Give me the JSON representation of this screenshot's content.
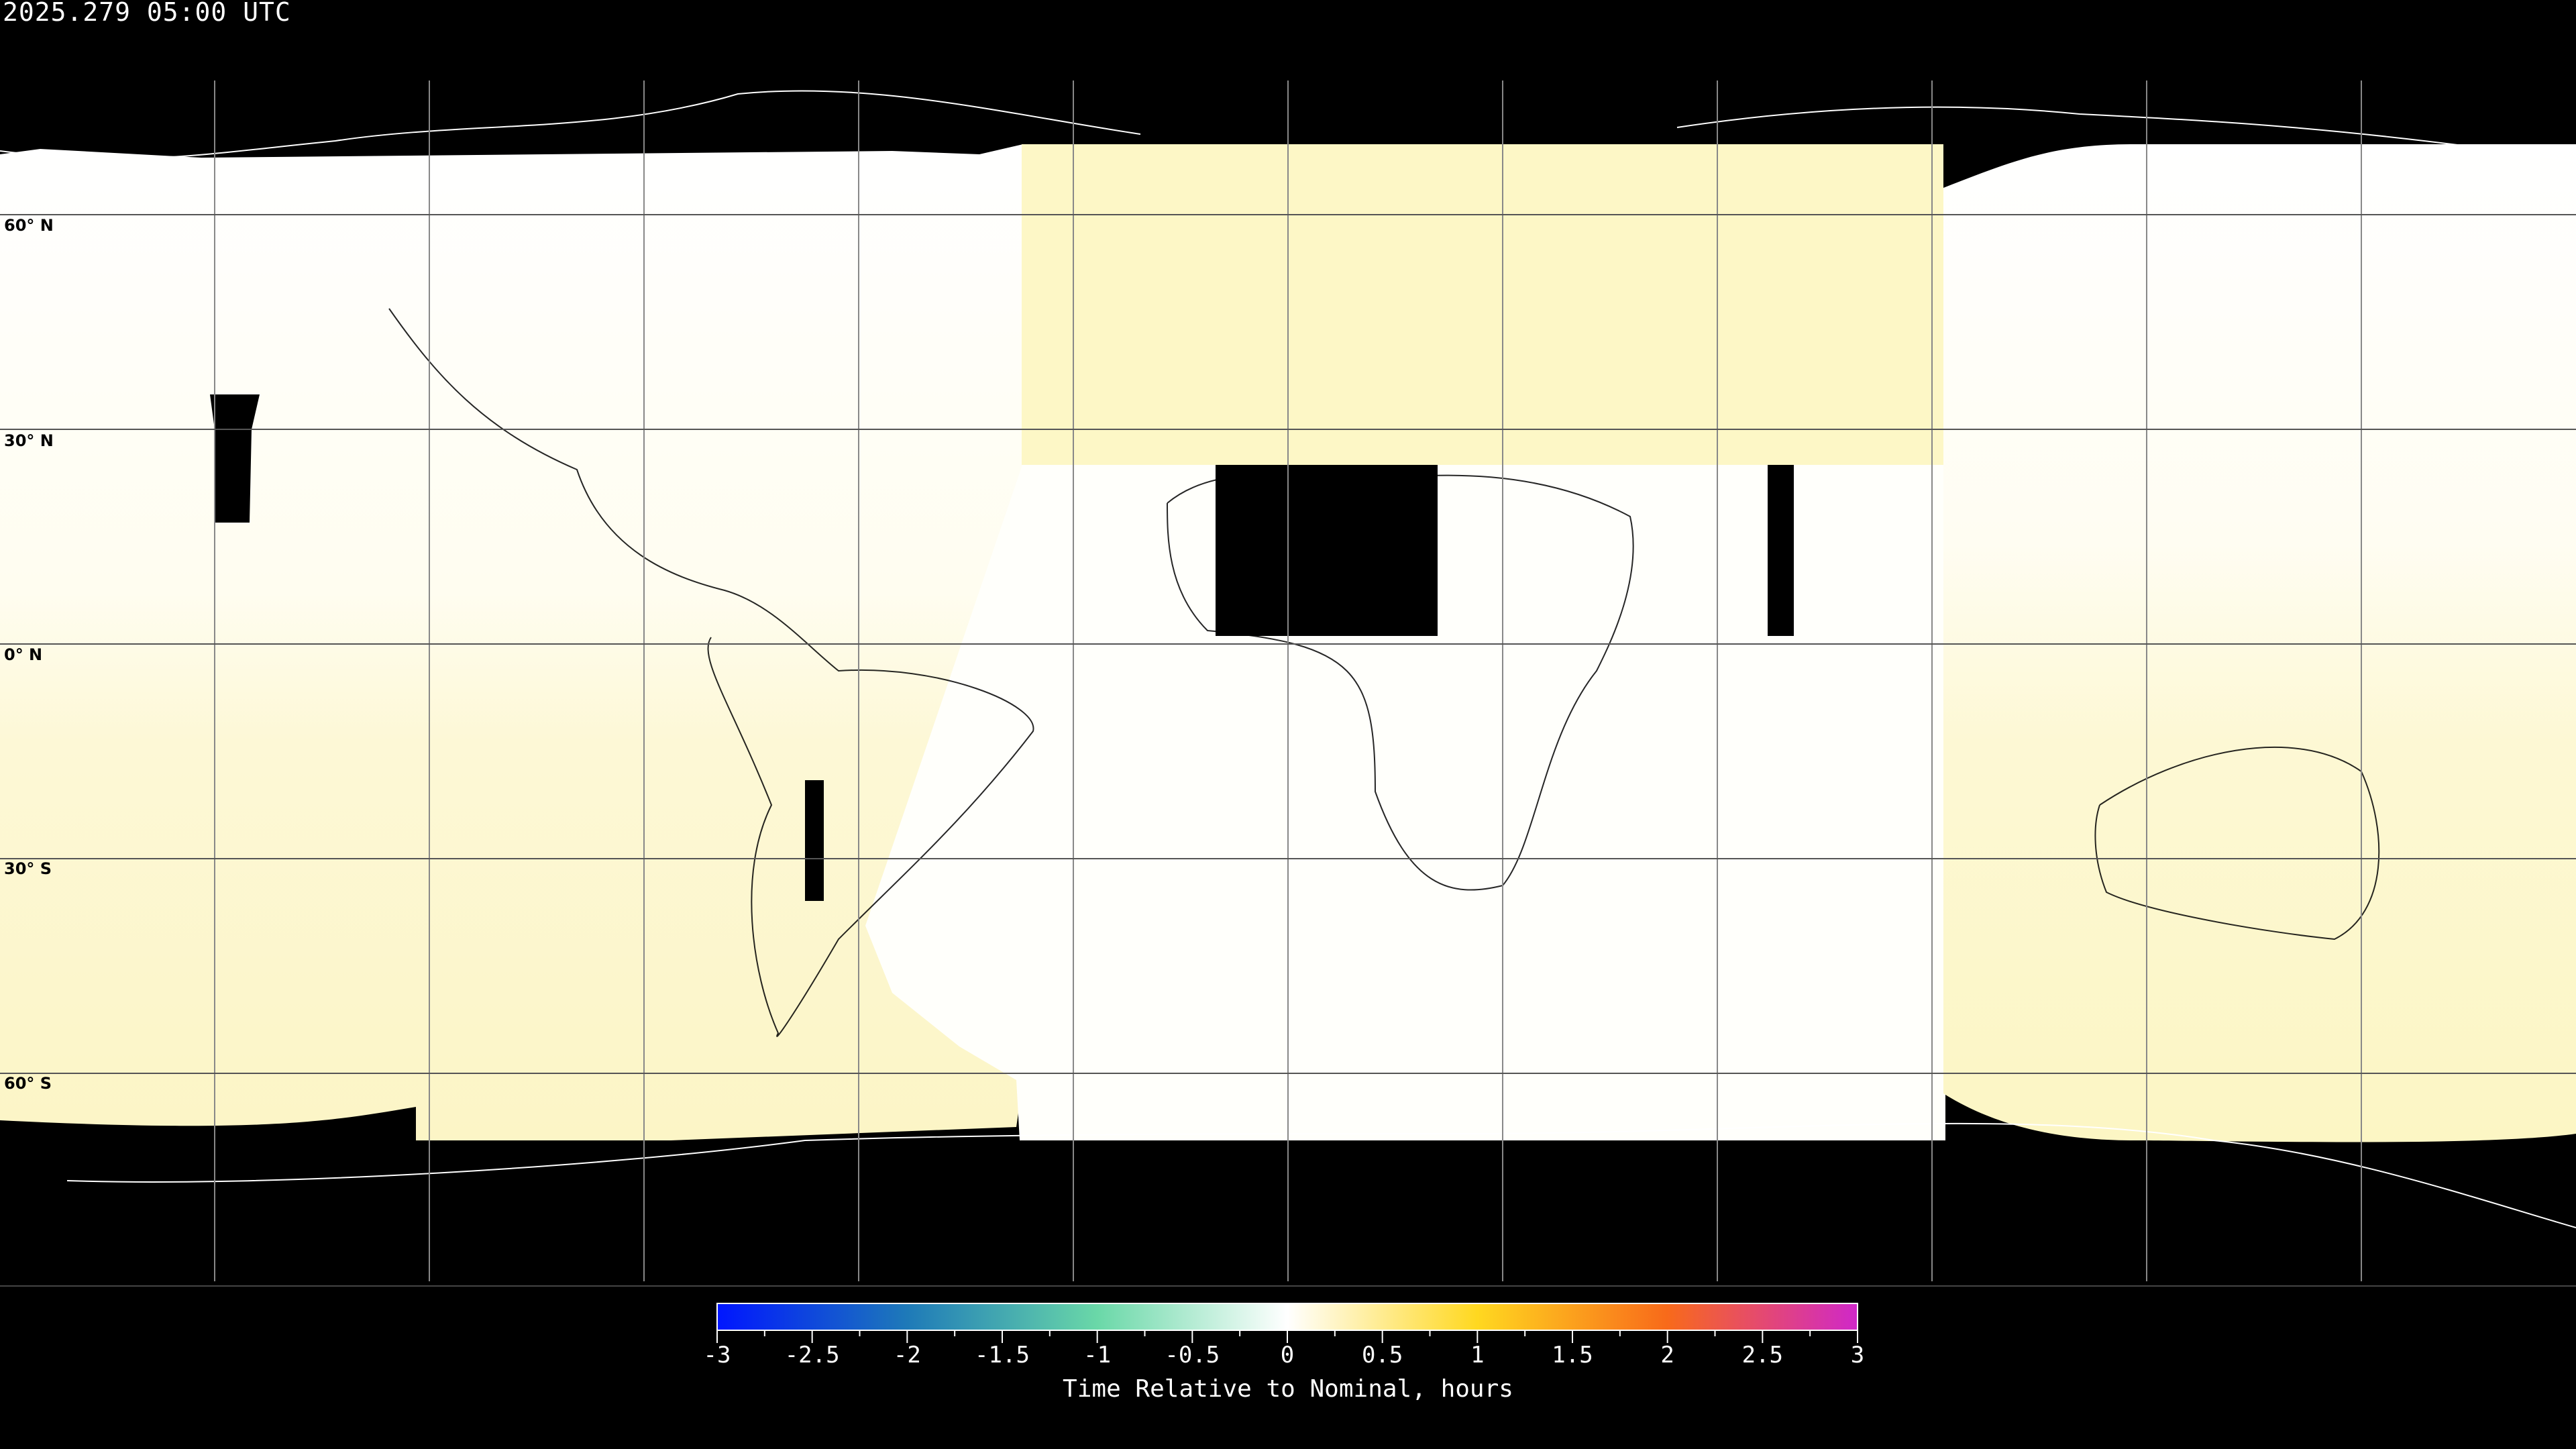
{
  "title": "2025.279 05:00 UTC",
  "lat_labels": [
    "60° N",
    "30° N",
    "0° N",
    "30° S",
    "60° S"
  ],
  "colorbar": {
    "title": "Time Relative to Nominal, hours",
    "ticks": [
      "-3",
      "-2.5",
      "-2",
      "-1.5",
      "-1",
      "-0.5",
      "0",
      "0.5",
      "1",
      "1.5",
      "2",
      "2.5",
      "3"
    ],
    "range": [
      -3,
      3
    ],
    "colors": [
      "#0016ff",
      "#1e7ab8",
      "#6ad8a8",
      "#ffffff",
      "#ffd820",
      "#f86a1a",
      "#d028c8"
    ]
  },
  "map": {
    "projection": "equirectangular",
    "graticule_step_deg": 30,
    "no_data_color": "#000000",
    "fill_colors": {
      "nominal": "#ffffff",
      "slight_late": "#fdf6c4"
    }
  }
}
